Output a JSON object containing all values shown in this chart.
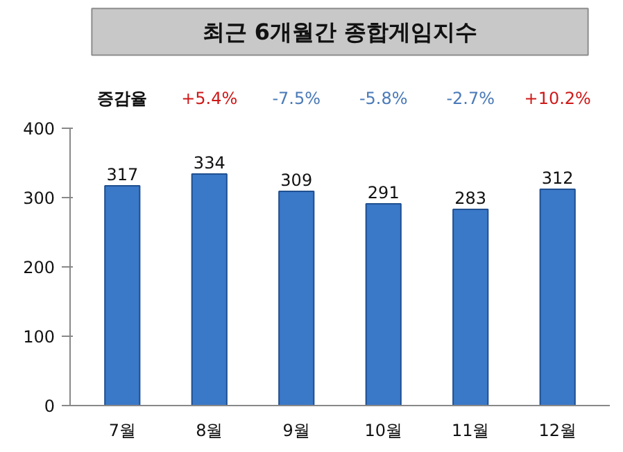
{
  "chart_data": {
    "type": "bar",
    "title": "최근 6개월간 종합게임지수",
    "categories": [
      "7월",
      "8월",
      "9월",
      "10월",
      "11월",
      "12월"
    ],
    "values": [
      317,
      334,
      309,
      291,
      283,
      312
    ],
    "color": "#3a78c8",
    "ylim": [
      0,
      400
    ],
    "yticks": [
      0,
      100,
      200,
      300,
      400
    ],
    "grid": false,
    "data_labels": true,
    "annotations": [
      "증감율",
      "+5.4%",
      "-7.5%",
      "-5.8%",
      "-2.7%",
      "+10.2%"
    ]
  }
}
